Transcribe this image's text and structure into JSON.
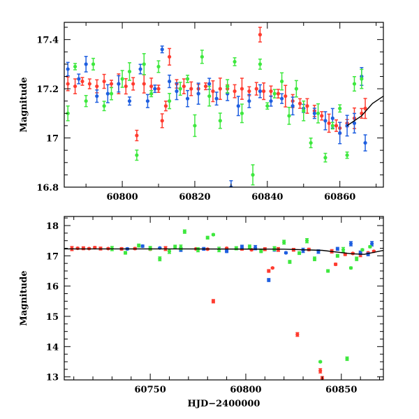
{
  "chart_data": [
    {
      "type": "scatter",
      "panel": "top",
      "title": "",
      "xlabel": "",
      "ylabel": "Magnitude",
      "xlim": [
        60784,
        60872
      ],
      "ylim": [
        17.47,
        16.8
      ],
      "y_inverted": true,
      "xticks": [
        60800,
        60820,
        60840,
        60860
      ],
      "yticks": [
        16.8,
        17,
        17.2,
        17.4
      ],
      "ytick_labels": [
        "16.8",
        "17",
        "17.2",
        "17.4"
      ],
      "grid": false,
      "legend": null,
      "series": [
        {
          "color": "#ff3b2f",
          "points": [
            [
              60785,
              17.22
            ],
            [
              60787,
              17.21
            ],
            [
              60789,
              17.23
            ],
            [
              60791,
              17.22
            ],
            [
              60793,
              17.21
            ],
            [
              60795,
              17.23
            ],
            [
              60797,
              17.22
            ],
            [
              60799,
              17.22
            ],
            [
              60801,
              17.21
            ],
            [
              60803,
              17.22
            ],
            [
              60804,
              17.01
            ],
            [
              60806,
              17.22
            ],
            [
              60808,
              17.21
            ],
            [
              60810,
              17.2
            ],
            [
              60811,
              17.07
            ],
            [
              60812,
              17.13
            ],
            [
              60813,
              17.33
            ],
            [
              60815,
              17.22
            ],
            [
              60817,
              17.21
            ],
            [
              60819,
              17.2
            ],
            [
              60821,
              17.2
            ],
            [
              60823,
              17.21
            ],
            [
              60825,
              17.19
            ],
            [
              60827,
              17.2
            ],
            [
              60829,
              17.2
            ],
            [
              60831,
              17.19
            ],
            [
              60833,
              17.2
            ],
            [
              60835,
              17.19
            ],
            [
              60837,
              17.2
            ],
            [
              60838,
              17.42
            ],
            [
              60839,
              17.19
            ],
            [
              60841,
              17.19
            ],
            [
              60843,
              17.18
            ],
            [
              60845,
              17.17
            ],
            [
              60847,
              17.15
            ],
            [
              60849,
              17.14
            ],
            [
              60851,
              17.13
            ],
            [
              60853,
              17.11
            ],
            [
              60855,
              17.09
            ],
            [
              60857,
              17.06
            ],
            [
              60859,
              17.05
            ],
            [
              60860,
              17.04
            ],
            [
              60862,
              17.06
            ],
            [
              60864,
              17.08
            ],
            [
              60866,
              17.1
            ],
            [
              60867,
              17.12
            ]
          ]
        },
        {
          "color": "#1f5fe0",
          "points": [
            [
              60785,
              17.28
            ],
            [
              60788,
              17.24
            ],
            [
              60790,
              17.3
            ],
            [
              60793,
              17.17
            ],
            [
              60796,
              17.18
            ],
            [
              60799,
              17.22
            ],
            [
              60802,
              17.15
            ],
            [
              60805,
              17.28
            ],
            [
              60807,
              17.15
            ],
            [
              60809,
              17.2
            ],
            [
              60811,
              17.36
            ],
            [
              60813,
              17.23
            ],
            [
              60815,
              17.19
            ],
            [
              60818,
              17.16
            ],
            [
              60821,
              17.18
            ],
            [
              60824,
              17.22
            ],
            [
              60826,
              17.16
            ],
            [
              60829,
              17.18
            ],
            [
              60830,
              16.8
            ],
            [
              60832,
              17.13
            ],
            [
              60835,
              17.15
            ],
            [
              60838,
              17.19
            ],
            [
              60841,
              17.15
            ],
            [
              60844,
              17.16
            ],
            [
              60847,
              17.13
            ],
            [
              60850,
              17.12
            ],
            [
              60853,
              17.1
            ],
            [
              60856,
              17.07
            ],
            [
              60858,
              17.08
            ],
            [
              60860,
              17.02
            ],
            [
              60862,
              17.05
            ],
            [
              60864,
              17.06
            ],
            [
              60866,
              17.25
            ],
            [
              60867,
              16.98
            ]
          ]
        },
        {
          "color": "#3ee83e",
          "points": [
            [
              60785,
              17.1
            ],
            [
              60787,
              17.29
            ],
            [
              60790,
              17.15
            ],
            [
              60792,
              17.3
            ],
            [
              60795,
              17.13
            ],
            [
              60797,
              17.18
            ],
            [
              60800,
              17.24
            ],
            [
              60802,
              17.27
            ],
            [
              60804,
              16.93
            ],
            [
              60806,
              17.3
            ],
            [
              60808,
              17.18
            ],
            [
              60810,
              17.29
            ],
            [
              60813,
              17.15
            ],
            [
              60816,
              17.2
            ],
            [
              60818,
              17.24
            ],
            [
              60820,
              17.05
            ],
            [
              60822,
              17.33
            ],
            [
              60824,
              17.17
            ],
            [
              60827,
              17.07
            ],
            [
              60829,
              17.21
            ],
            [
              60831,
              17.31
            ],
            [
              60833,
              17.1
            ],
            [
              60836,
              16.85
            ],
            [
              60838,
              17.3
            ],
            [
              60840,
              17.13
            ],
            [
              60842,
              17.18
            ],
            [
              60844,
              17.23
            ],
            [
              60846,
              17.09
            ],
            [
              60848,
              17.2
            ],
            [
              60850,
              17.11
            ],
            [
              60852,
              16.98
            ],
            [
              60854,
              17.1
            ],
            [
              60856,
              16.92
            ],
            [
              60858,
              17.05
            ],
            [
              60860,
              17.12
            ],
            [
              60862,
              16.93
            ],
            [
              60864,
              17.22
            ],
            [
              60866,
              17.24
            ]
          ]
        }
      ],
      "model_curve": {
        "color": "#000000",
        "points": [
          [
            60862,
            17.05
          ],
          [
            60866,
            17.09
          ],
          [
            60869,
            17.14
          ],
          [
            60872,
            17.17
          ]
        ]
      }
    },
    {
      "type": "scatter",
      "panel": "bottom",
      "title": "",
      "xlabel": "HJD−2400000",
      "ylabel": "Magnitude",
      "xlim": [
        60705,
        60872
      ],
      "ylim": [
        18.3,
        12.9
      ],
      "y_inverted": true,
      "xticks": [
        60750,
        60800,
        60850
      ],
      "yticks": [
        13,
        14,
        15,
        16,
        17,
        18
      ],
      "ytick_labels": [
        "13",
        "14",
        "15",
        "16",
        "17",
        "18"
      ],
      "grid": false,
      "legend": null,
      "series": [
        {
          "color": "#ff3b2f",
          "points": [
            [
              60709,
              17.24
            ],
            [
              60712,
              17.25
            ],
            [
              60715,
              17.25
            ],
            [
              60718,
              17.24
            ],
            [
              60721,
              17.27
            ],
            [
              60724,
              17.24
            ],
            [
              60728,
              17.24
            ],
            [
              60735,
              17.23
            ],
            [
              60742,
              17.24
            ],
            [
              60750,
              17.22
            ],
            [
              60758,
              17.24
            ],
            [
              60766,
              17.23
            ],
            [
              60774,
              17.23
            ],
            [
              60780,
              17.22
            ],
            [
              60783,
              15.5
            ],
            [
              60790,
              17.25
            ],
            [
              60798,
              17.23
            ],
            [
              60803,
              17.2
            ],
            [
              60810,
              17.22
            ],
            [
              60812,
              16.5
            ],
            [
              60814,
              16.6
            ],
            [
              60817,
              17.21
            ],
            [
              60825,
              17.2
            ],
            [
              60827,
              14.4
            ],
            [
              60833,
              17.21
            ],
            [
              60839,
              13.2
            ],
            [
              60840,
              12.95
            ],
            [
              60845,
              17.15
            ],
            [
              60847,
              16.72
            ],
            [
              60852,
              17.05
            ],
            [
              60856,
              17.08
            ],
            [
              60860,
              17.04
            ],
            [
              60864,
              17.1
            ],
            [
              60867,
              17.15
            ]
          ]
        },
        {
          "color": "#1f5fe0",
          "points": [
            [
              60738,
              17.23
            ],
            [
              60746,
              17.32
            ],
            [
              60755,
              17.26
            ],
            [
              60766,
              17.2
            ],
            [
              60778,
              17.23
            ],
            [
              60790,
              17.15
            ],
            [
              60798,
              17.3
            ],
            [
              60805,
              17.27
            ],
            [
              60812,
              16.2
            ],
            [
              60815,
              17.2
            ],
            [
              60821,
              17.1
            ],
            [
              60830,
              17.18
            ],
            [
              60838,
              17.14
            ],
            [
              60848,
              17.23
            ],
            [
              60855,
              17.4
            ],
            [
              60860,
              17.1
            ],
            [
              60864,
              17.05
            ],
            [
              60866,
              17.4
            ]
          ]
        },
        {
          "color": "#3ee83e",
          "points": [
            [
              60730,
              17.24
            ],
            [
              60737,
              17.1
            ],
            [
              60744,
              17.34
            ],
            [
              60750,
              17.25
            ],
            [
              60755,
              16.9
            ],
            [
              60760,
              17.15
            ],
            [
              60763,
              17.3
            ],
            [
              60766,
              17.28
            ],
            [
              60768,
              17.8
            ],
            [
              60775,
              17.2
            ],
            [
              60780,
              17.6
            ],
            [
              60783,
              17.7
            ],
            [
              60786,
              17.21
            ],
            [
              60795,
              17.25
            ],
            [
              60802,
              17.3
            ],
            [
              60808,
              17.15
            ],
            [
              60815,
              17.24
            ],
            [
              60820,
              17.45
            ],
            [
              60823,
              16.8
            ],
            [
              60828,
              17.09
            ],
            [
              60832,
              17.5
            ],
            [
              60836,
              16.9
            ],
            [
              60839,
              13.5
            ],
            [
              60843,
              16.5
            ],
            [
              60848,
              17.0
            ],
            [
              60851,
              17.2
            ],
            [
              60853,
              13.6
            ],
            [
              60855,
              16.6
            ],
            [
              60858,
              16.9
            ],
            [
              60861,
              17.2
            ],
            [
              60865,
              17.3
            ]
          ]
        }
      ],
      "model_curve": {
        "color": "#000000",
        "points": [
          [
            60705,
            17.23
          ],
          [
            60760,
            17.23
          ],
          [
            60820,
            17.22
          ],
          [
            60840,
            17.18
          ],
          [
            60855,
            17.07
          ],
          [
            60862,
            17.05
          ],
          [
            60872,
            17.18
          ]
        ]
      }
    }
  ]
}
